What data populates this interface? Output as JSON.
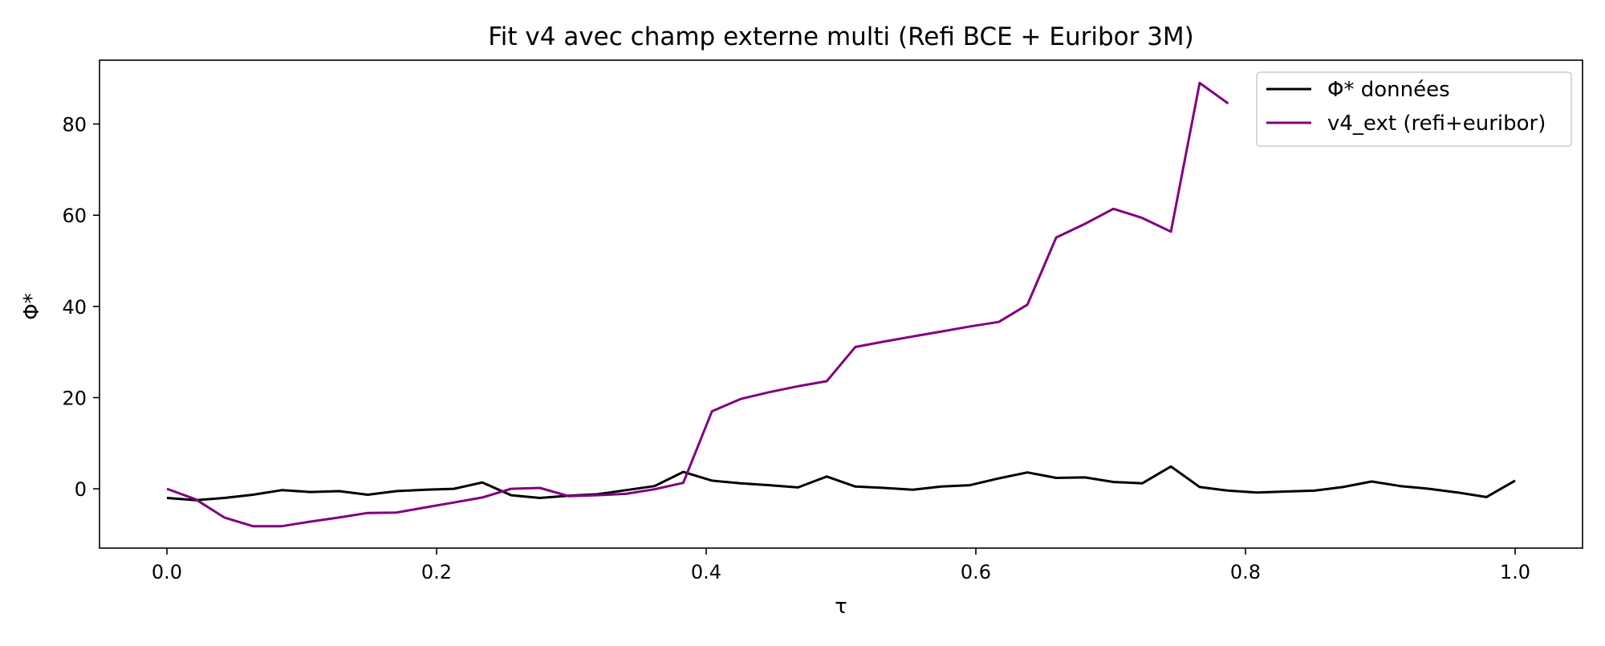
{
  "chart_data": {
    "type": "line",
    "title": "Fit v4 avec champ externe multi (Refi BCE + Euribor 3M)",
    "xlabel": "τ",
    "ylabel": "Φ*",
    "xlim": [
      -0.05,
      1.05
    ],
    "ylim": [
      -13,
      94
    ],
    "xticks": [
      0.0,
      0.2,
      0.4,
      0.6,
      0.8,
      1.0
    ],
    "xtick_labels": [
      "0.0",
      "0.2",
      "0.4",
      "0.6",
      "0.8",
      "1.0"
    ],
    "yticks": [
      0,
      20,
      40,
      60,
      80
    ],
    "ytick_labels": [
      "0",
      "20",
      "40",
      "60",
      "80"
    ],
    "grid": false,
    "legend_position": "top-right",
    "series": [
      {
        "name": "Φ* données",
        "color": "#000000",
        "x": [
          0.0,
          0.0213,
          0.0426,
          0.0638,
          0.0851,
          0.1064,
          0.1277,
          0.1489,
          0.1702,
          0.1915,
          0.2128,
          0.234,
          0.2553,
          0.2766,
          0.2979,
          0.3191,
          0.3404,
          0.3617,
          0.383,
          0.4043,
          0.4255,
          0.4468,
          0.4681,
          0.4894,
          0.5106,
          0.5319,
          0.5532,
          0.5745,
          0.5957,
          0.617,
          0.6383,
          0.6596,
          0.6809,
          0.7021,
          0.7234,
          0.7447,
          0.766,
          0.7872,
          0.8085,
          0.8298,
          0.8511,
          0.8723,
          0.8936,
          0.9149,
          0.9362,
          0.9574,
          0.9787,
          1.0
        ],
        "values": [
          -2,
          -2.5,
          -2,
          -1.3,
          -0.3,
          -0.7,
          -0.5,
          -1.3,
          -0.5,
          -0.2,
          0,
          1.4,
          -1.4,
          -2,
          -1.5,
          -1.2,
          -0.3,
          0.6,
          3.7,
          1.8,
          1.2,
          0.8,
          0.3,
          2.7,
          0.5,
          0.2,
          -0.2,
          0.5,
          0.8,
          2.3,
          3.6,
          2.4,
          2.5,
          1.5,
          1.2,
          4.9,
          0.4,
          -0.4,
          -0.8,
          -0.6,
          -0.4,
          0.4,
          1.6,
          0.6,
          0,
          -0.8,
          -1.8,
          1.8
        ]
      },
      {
        "name": "v4_ext (refi+euribor)",
        "color": "#800080",
        "x": [
          0.0,
          0.0213,
          0.0426,
          0.0638,
          0.0851,
          0.1064,
          0.1277,
          0.1489,
          0.1702,
          0.1915,
          0.2128,
          0.234,
          0.2553,
          0.2766,
          0.2979,
          0.3191,
          0.3404,
          0.3617,
          0.383,
          0.4043,
          0.4255,
          0.4468,
          0.4681,
          0.4894,
          0.5106,
          0.5319,
          0.5532,
          0.5745,
          0.5957,
          0.617,
          0.6383,
          0.6596,
          0.6809,
          0.7021,
          0.7234,
          0.7447,
          0.766,
          0.7872
        ],
        "values": [
          0,
          -2.3,
          -6.3,
          -8.2,
          -8.2,
          -7.2,
          -6.3,
          -5.3,
          -5.2,
          -4.1,
          -3,
          -1.9,
          0,
          0.2,
          -1.6,
          -1.4,
          -1.1,
          -0.1,
          1.3,
          17,
          19.7,
          21.2,
          22.5,
          23.6,
          31.1,
          32.3,
          33.4,
          34.5,
          35.6,
          36.6,
          40.4,
          55.1,
          58.1,
          61.4,
          59.4,
          56.4,
          89,
          84.5
        ]
      }
    ]
  }
}
